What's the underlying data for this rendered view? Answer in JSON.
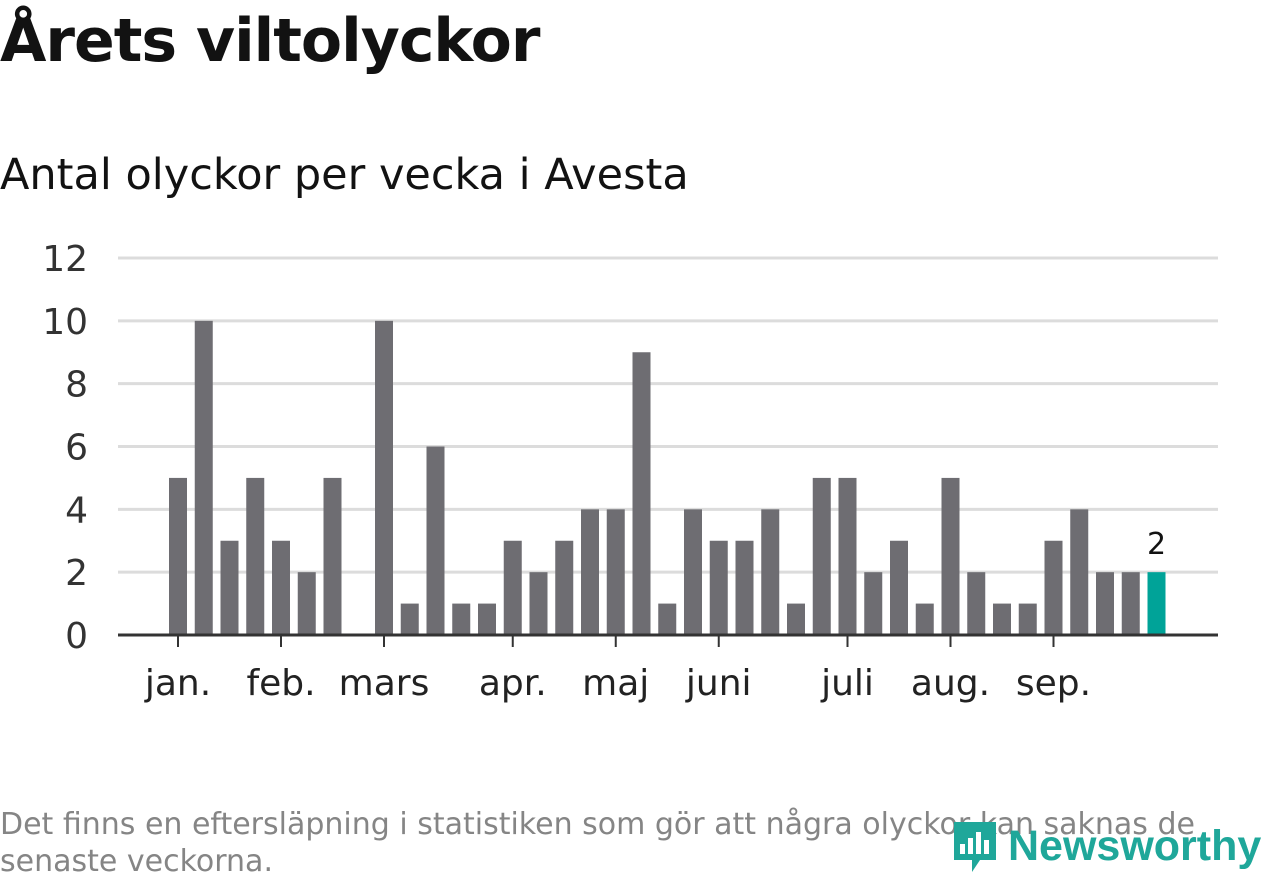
{
  "title": "Årets viltolyckor",
  "subtitle": "Antal olyckor per vecka i Avesta",
  "note": "Det finns en eftersläpning i statistiken som gör att några olyckor kan saknas de senaste veckorna.",
  "logo": {
    "text": "Newsworthy",
    "icon": "newsworthy-logo-icon"
  },
  "colors": {
    "bar": "#6e6d72",
    "highlight": "#00a398",
    "grid": "#dcdcdc",
    "axis": "#333333"
  },
  "chart_data": {
    "type": "bar",
    "title": "Antal olyckor per vecka i Avesta",
    "ylim": [
      0,
      12
    ],
    "yticks": [
      0,
      2,
      4,
      6,
      8,
      10,
      12
    ],
    "grid": true,
    "values": [
      5,
      10,
      3,
      5,
      3,
      2,
      5,
      0,
      10,
      1,
      6,
      1,
      1,
      3,
      2,
      3,
      4,
      4,
      9,
      1,
      4,
      3,
      3,
      4,
      1,
      5,
      5,
      2,
      3,
      1,
      5,
      2,
      1,
      1,
      3,
      4,
      2,
      2,
      2
    ],
    "month_labels": [
      {
        "label": "jan.",
        "week_index": 0
      },
      {
        "label": "feb.",
        "week_index": 4
      },
      {
        "label": "mars",
        "week_index": 8
      },
      {
        "label": "apr.",
        "week_index": 13
      },
      {
        "label": "maj",
        "week_index": 17
      },
      {
        "label": "juni",
        "week_index": 21
      },
      {
        "label": "juli",
        "week_index": 26
      },
      {
        "label": "aug.",
        "week_index": 30
      },
      {
        "label": "sep.",
        "week_index": 34
      }
    ],
    "highlight_index": 38,
    "highlight_label": "2"
  }
}
